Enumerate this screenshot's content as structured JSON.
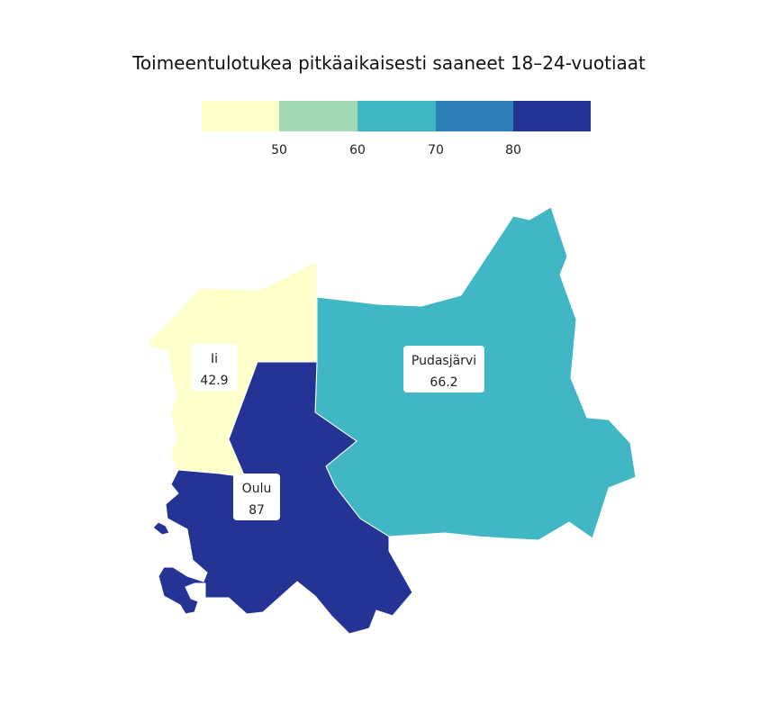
{
  "title": "Toimeentulotukea pitkäaikaisesti saaneet 18–24-vuotiaat",
  "legend": {
    "colors": [
      "#ffffcc",
      "#a1dab4",
      "#41b6c4",
      "#2c7fb8",
      "#253494"
    ],
    "ticks": [
      "50",
      "60",
      "70",
      "80"
    ]
  },
  "regions": [
    {
      "name": "Ii",
      "value": "42.9",
      "color": "#ffffcc"
    },
    {
      "name": "Pudasjärvi",
      "value": "66.2",
      "color": "#41b6c4"
    },
    {
      "name": "Oulu",
      "value": "87",
      "color": "#253494"
    }
  ]
}
